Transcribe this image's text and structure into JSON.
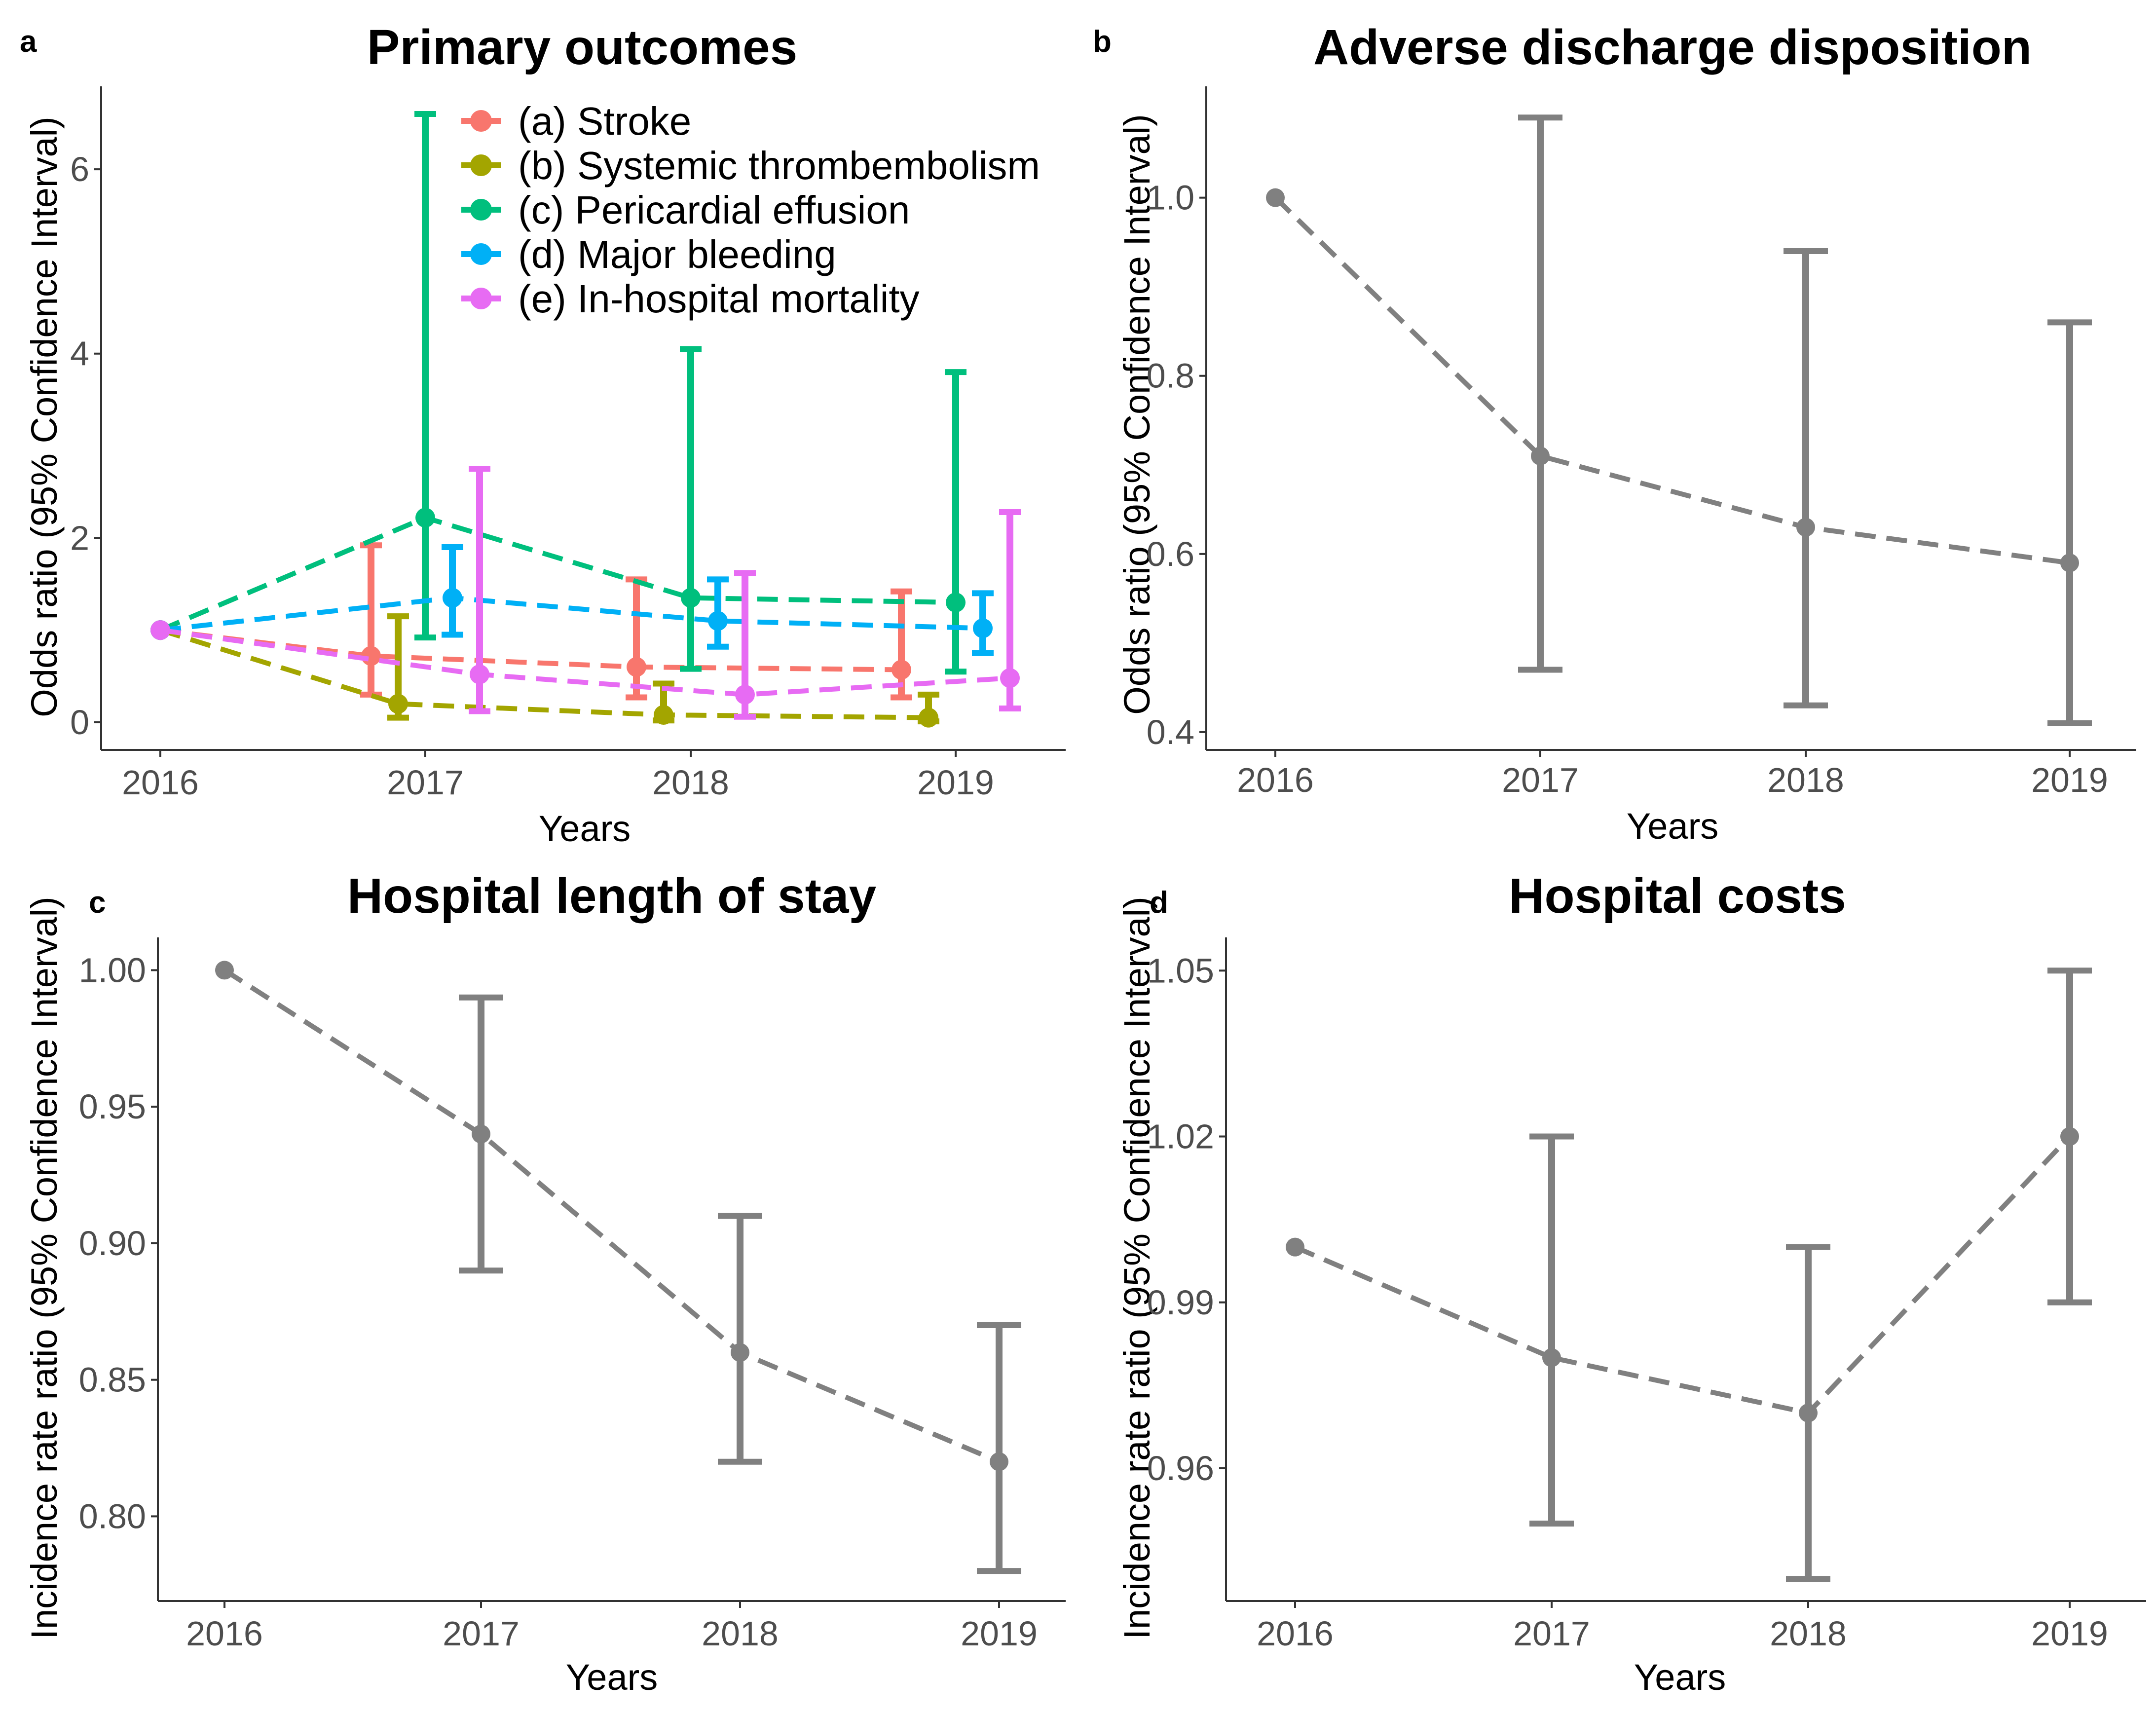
{
  "chart_data": [
    {
      "panel": "a",
      "type": "line",
      "title": "Primary outcomes",
      "xlabel": "Years",
      "ylabel": "Odds ratio (95% Confidence Interval)",
      "x": [
        "2016",
        "2017",
        "2018",
        "2019"
      ],
      "yticks": [
        0,
        2,
        4,
        6
      ],
      "ytick_labels": [
        "0",
        "2",
        "4",
        "6"
      ],
      "ylim": [
        -0.3,
        6.9
      ],
      "error_bars": true,
      "dodged": true,
      "legend_position": "top-center",
      "series": [
        {
          "name": "(a) Stroke",
          "color": "#F8766D",
          "values": [
            1.0,
            0.72,
            0.6,
            0.57
          ],
          "ci_low": [
            1.0,
            0.3,
            0.27,
            0.27
          ],
          "ci_high": [
            1.0,
            1.92,
            1.55,
            1.42
          ]
        },
        {
          "name": "(b) Systemic thrombembolism",
          "color": "#A3A500",
          "values": [
            1.0,
            0.2,
            0.08,
            0.05
          ],
          "ci_low": [
            1.0,
            0.05,
            0.02,
            0.01
          ],
          "ci_high": [
            1.0,
            1.15,
            0.42,
            0.3
          ]
        },
        {
          "name": "(c) Pericardial effusion",
          "color": "#00BF7D",
          "values": [
            1.0,
            2.22,
            1.35,
            1.3
          ],
          "ci_low": [
            1.0,
            0.92,
            0.58,
            0.55
          ],
          "ci_high": [
            1.0,
            6.6,
            4.05,
            3.8
          ]
        },
        {
          "name": "(d) Major bleeding",
          "color": "#00B0F6",
          "values": [
            1.0,
            1.35,
            1.1,
            1.02
          ],
          "ci_low": [
            1.0,
            0.95,
            0.82,
            0.75
          ],
          "ci_high": [
            1.0,
            1.9,
            1.55,
            1.4
          ]
        },
        {
          "name": "(e) In-hospital mortality",
          "color": "#E76BF3",
          "values": [
            1.0,
            0.52,
            0.3,
            0.48
          ],
          "ci_low": [
            1.0,
            0.12,
            0.06,
            0.15
          ],
          "ci_high": [
            1.0,
            2.75,
            1.62,
            2.28
          ]
        }
      ]
    },
    {
      "panel": "b",
      "type": "line",
      "title": "Adverse discharge disposition",
      "xlabel": "Years",
      "ylabel": "Odds ratio (95% Confidence Interval)",
      "x": [
        "2016",
        "2017",
        "2018",
        "2019"
      ],
      "yticks": [
        0.4,
        0.6,
        0.8,
        1.0
      ],
      "ytick_labels": [
        "0.4",
        "0.6",
        "0.8",
        "1.0"
      ],
      "ylim": [
        0.38,
        1.125
      ],
      "error_bars": true,
      "color": "#808080",
      "values": [
        1.0,
        0.71,
        0.63,
        0.59
      ],
      "ci_low": [
        1.0,
        0.47,
        0.43,
        0.41
      ],
      "ci_high": [
        1.0,
        1.09,
        0.94,
        0.86
      ]
    },
    {
      "panel": "c",
      "type": "line",
      "title": "Hospital length of stay",
      "xlabel": "Years",
      "ylabel": "Incidence rate ratio (95% Confidence Interval)",
      "x": [
        "2016",
        "2017",
        "2018",
        "2019"
      ],
      "yticks": [
        0.8,
        0.85,
        0.9,
        0.95,
        1.0
      ],
      "ytick_labels": [
        "0.80",
        "0.85",
        "0.90",
        "0.95",
        "1.00"
      ],
      "ylim": [
        0.769,
        1.012
      ],
      "error_bars": true,
      "color": "#808080",
      "values": [
        1.0,
        0.94,
        0.86,
        0.82
      ],
      "ci_low": [
        1.0,
        0.89,
        0.82,
        0.78
      ],
      "ci_high": [
        1.0,
        0.99,
        0.91,
        0.87
      ]
    },
    {
      "panel": "d",
      "type": "line",
      "title": "Hospital costs",
      "xlabel": "Years",
      "ylabel": "Incidence rate ratio (95% Confidence Interval)",
      "x": [
        "2016",
        "2017",
        "2018",
        "2019"
      ],
      "yticks": [
        0.96,
        0.99,
        1.02,
        1.05
      ],
      "ytick_labels": [
        "0.96",
        "0.99",
        "1.02",
        "1.05"
      ],
      "ylim": [
        0.936,
        1.056
      ],
      "error_bars": true,
      "color": "#808080",
      "values": [
        1.0,
        0.98,
        0.97,
        1.02
      ],
      "ci_low": [
        1.0,
        0.95,
        0.94,
        0.99
      ],
      "ci_high": [
        1.0,
        1.02,
        1.0,
        1.05
      ]
    }
  ]
}
